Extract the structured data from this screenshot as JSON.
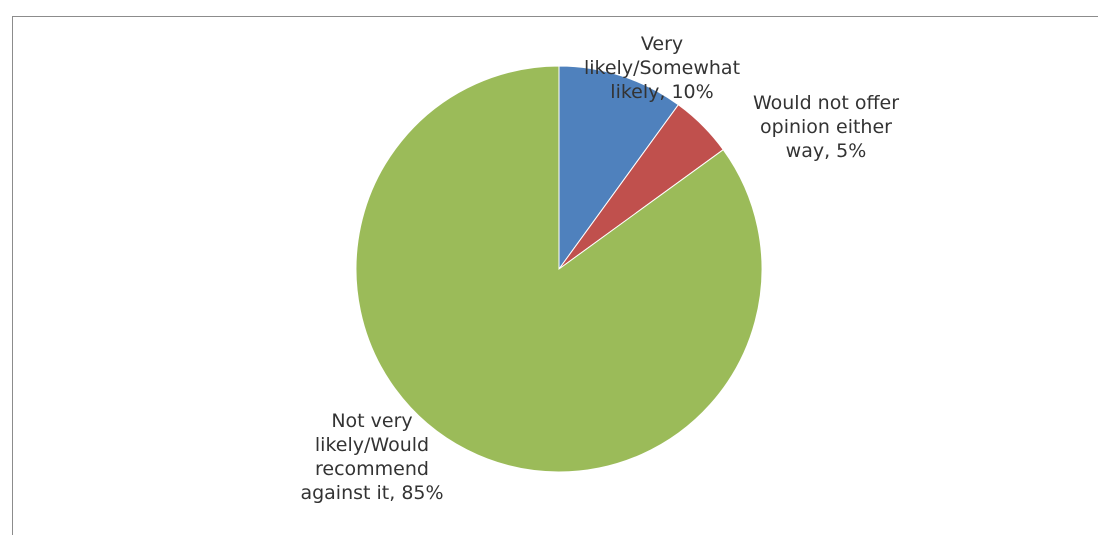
{
  "chart_data": {
    "type": "pie",
    "title": "",
    "start_angle_deg": 0,
    "direction": "clockwise",
    "slices": [
      {
        "label_lines": [
          "Very",
          "likely/Somewhat",
          "likely, 10%"
        ],
        "value": 10,
        "color": "#4f81bd"
      },
      {
        "label_lines": [
          "Would not offer",
          "opinion either",
          "way, 5%"
        ],
        "value": 5,
        "color": "#c0504d"
      },
      {
        "label_lines": [
          "Not very",
          "likely/Would",
          "recommend",
          "against it, 85%"
        ],
        "value": 85,
        "color": "#9bbb59"
      }
    ]
  }
}
